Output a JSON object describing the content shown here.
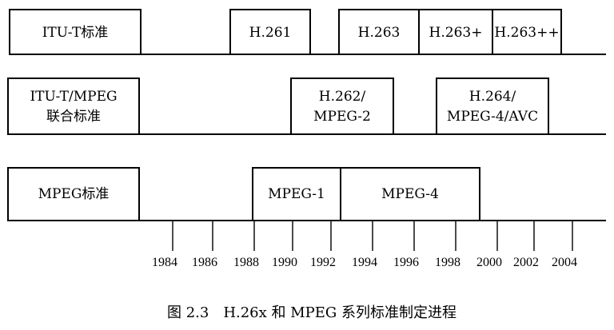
{
  "rows": {
    "itu": {
      "category": "ITU-T标准",
      "standards": [
        {
          "label": "H.261"
        },
        {
          "label": "H.263"
        },
        {
          "label": "H.263+"
        },
        {
          "label": "H.263++"
        }
      ]
    },
    "joint": {
      "category_line1": "ITU-T/MPEG",
      "category_line2": "联合标准",
      "standards": [
        {
          "line1": "H.262/",
          "line2": "MPEG-2"
        },
        {
          "line1": "H.264/",
          "line2": "MPEG-4/AVC"
        }
      ]
    },
    "mpeg": {
      "category": "MPEG标准",
      "standards": [
        {
          "label": "MPEG-1"
        },
        {
          "label": "MPEG-4"
        }
      ]
    }
  },
  "timeline": {
    "years": [
      "1984",
      "1986",
      "1988",
      "1990",
      "1992",
      "1994",
      "1996",
      "1998",
      "2000",
      "2002",
      "2004"
    ]
  },
  "caption": "图 2.3　H.26x 和 MPEG 系列标准制定进程"
}
